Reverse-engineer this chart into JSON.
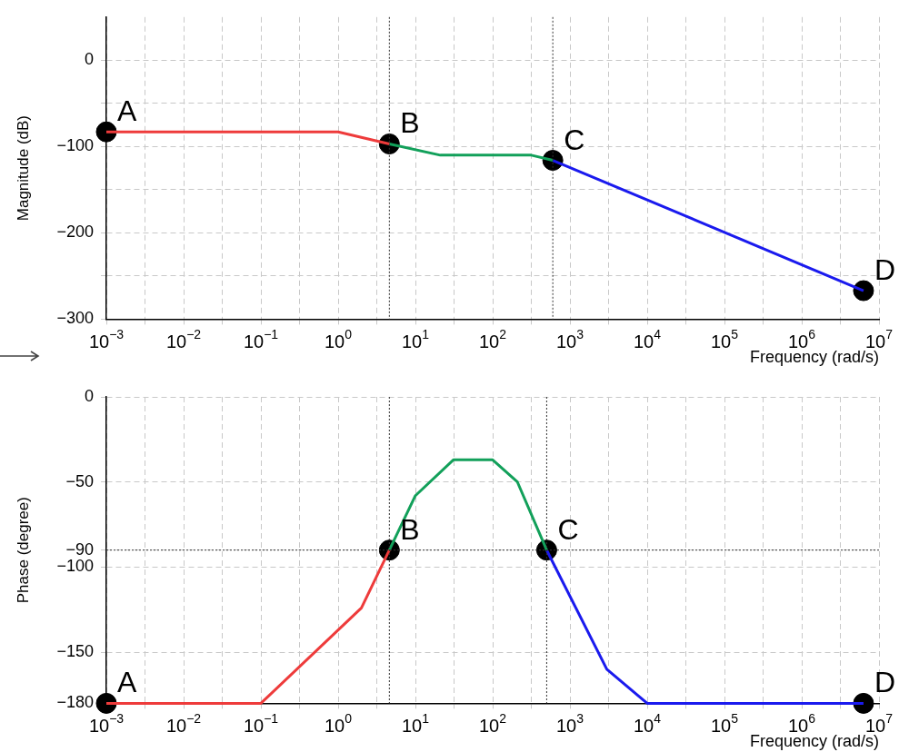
{
  "chart_data": [
    {
      "type": "line",
      "ylabel": "Magnitude (dB)",
      "xlabel": "Frequency (rad/s)",
      "log": "x",
      "grid": true,
      "legend": false,
      "line_style": "solid",
      "marker": "none",
      "xlim": [
        0.001,
        10000000
      ],
      "ylim": [
        -300,
        50
      ],
      "xticks": [
        {
          "value": 0.001,
          "label": "10$^{−3}$"
        },
        {
          "value": 0.0032,
          "label": null
        },
        {
          "value": 0.01,
          "label": "10$^{−2}$"
        },
        {
          "value": 0.032,
          "label": null
        },
        {
          "value": 0.1,
          "label": "10$^{−1}$"
        },
        {
          "value": 0.32,
          "label": null
        },
        {
          "value": 1,
          "label": "10$^{0}$"
        },
        {
          "value": 3.2,
          "label": null
        },
        {
          "value": 10,
          "label": "10$^{1}$"
        },
        {
          "value": 32,
          "label": null
        },
        {
          "value": 100,
          "label": "10$^{2}$"
        },
        {
          "value": 320,
          "label": null
        },
        {
          "value": 1000,
          "label": "10$^{3}$"
        },
        {
          "value": 3200,
          "label": null
        },
        {
          "value": 10000,
          "label": "10$^{4}$"
        },
        {
          "value": 32000,
          "label": null
        },
        {
          "value": 100000,
          "label": "10$^{5}$"
        },
        {
          "value": 320000,
          "label": null
        },
        {
          "value": 1000000,
          "label": "10$^{6}$"
        },
        {
          "value": 3200000,
          "label": null
        },
        {
          "value": 10000000,
          "label": "10$^{7}$"
        }
      ],
      "yticks": [
        {
          "value": -300,
          "label": "−300"
        },
        {
          "value": -250,
          "label": null
        },
        {
          "value": -200,
          "label": "−200"
        },
        {
          "value": -150,
          "label": null
        },
        {
          "value": -100,
          "label": "−100"
        },
        {
          "value": -50,
          "label": null
        },
        0
      ],
      "series": [
        {
          "type": "line",
          "color": "#ee3b3b",
          "x": [
            0.001,
            1,
            4.6
          ],
          "values": [
            -83,
            -83,
            -97
          ]
        },
        {
          "type": "line",
          "color": "#12a05a",
          "x": [
            4.6,
            21,
            316,
            600
          ],
          "values": [
            -97,
            -110,
            -110,
            -116
          ]
        },
        {
          "type": "line",
          "color": "#1a1aee",
          "x": [
            600,
            6300000
          ],
          "values": [
            -116,
            -267
          ]
        },
        {
          "type": "scatter",
          "marker": "circle",
          "color": "#000000",
          "x": [
            0.001,
            4.6,
            600,
            6300000
          ],
          "values": [
            -83,
            -97,
            -116,
            -267
          ]
        }
      ],
      "ref_lines": [
        {
          "axis": "x",
          "value": 4.6,
          "color": "#333333",
          "line_style": "dotted"
        },
        {
          "axis": "x",
          "value": 600,
          "color": "#333333",
          "line_style": "dotted"
        }
      ],
      "annotations": [
        {
          "text": "A",
          "x": 0.001,
          "y": -83
        },
        {
          "text": "B",
          "x": 4.6,
          "y": -97
        },
        {
          "text": "C",
          "x": 600,
          "y": -116
        },
        {
          "text": "D",
          "x": 6300000,
          "y": -267
        }
      ]
    },
    {
      "type": "line",
      "ylabel": "Phase (degree)",
      "xlabel": "Frequency (rad/s)",
      "log": "x",
      "grid": true,
      "legend": false,
      "line_style": "solid",
      "marker": "none",
      "xlim": [
        0.001,
        10000000
      ],
      "ylim": [
        -180,
        0
      ],
      "xticks": [
        {
          "value": 0.001,
          "label": "10$^{−3}$"
        },
        {
          "value": 0.0032,
          "label": null
        },
        {
          "value": 0.01,
          "label": "10$^{−2}$"
        },
        {
          "value": 0.032,
          "label": null
        },
        {
          "value": 0.1,
          "label": "10$^{−1}$"
        },
        {
          "value": 0.32,
          "label": null
        },
        {
          "value": 1,
          "label": "10$^{0}$"
        },
        {
          "value": 3.2,
          "label": null
        },
        {
          "value": 10,
          "label": "10$^{1}$"
        },
        {
          "value": 32,
          "label": null
        },
        {
          "value": 100,
          "label": "10$^{2}$"
        },
        {
          "value": 320,
          "label": null
        },
        {
          "value": 1000,
          "label": "10$^{3}$"
        },
        {
          "value": 3200,
          "label": null
        },
        {
          "value": 10000,
          "label": "10$^{4}$"
        },
        {
          "value": 32000,
          "label": null
        },
        {
          "value": 100000,
          "label": "10$^{5}$"
        },
        {
          "value": 320000,
          "label": null
        },
        {
          "value": 1000000,
          "label": "10$^{6}$"
        },
        {
          "value": 3200000,
          "label": null
        },
        {
          "value": 10000000,
          "label": "10$^{7}$"
        }
      ],
      "yticks": [
        {
          "value": -180,
          "label": "−180"
        },
        {
          "value": -150,
          "label": "−150"
        },
        {
          "value": -100,
          "label": "−100"
        },
        {
          "value": -90,
          "label": "−90"
        },
        {
          "value": -50,
          "label": "−50"
        },
        0
      ],
      "series": [
        {
          "type": "line",
          "color": "#ee3b3b",
          "x": [
            0.001,
            0.1,
            2,
            4.6
          ],
          "values": [
            -180,
            -180,
            -124,
            -90
          ]
        },
        {
          "type": "line",
          "color": "#12a05a",
          "x": [
            4.6,
            10,
            31,
            100,
            209,
            500
          ],
          "values": [
            -90,
            -58,
            -37,
            -37,
            -50,
            -90
          ]
        },
        {
          "type": "line",
          "color": "#1a1aee",
          "x": [
            500,
            3000,
            10000,
            6300000
          ],
          "values": [
            -90,
            -160,
            -180,
            -180
          ]
        },
        {
          "type": "scatter",
          "marker": "circle",
          "color": "#000000",
          "x": [
            0.001,
            4.6,
            500,
            6300000
          ],
          "values": [
            -180,
            -90,
            -90,
            -180
          ]
        }
      ],
      "ref_lines": [
        {
          "axis": "x",
          "value": 4.6,
          "color": "#333333",
          "line_style": "dotted"
        },
        {
          "axis": "x",
          "value": 500,
          "color": "#333333",
          "line_style": "dotted"
        },
        {
          "axis": "y",
          "value": -90,
          "color": "#333333",
          "line_style": "dotted"
        }
      ],
      "annotations": [
        {
          "text": "A",
          "x": 0.001,
          "y": -180
        },
        {
          "text": "B",
          "x": 4.6,
          "y": -90
        },
        {
          "text": "C",
          "x": 500,
          "y": -90
        },
        {
          "text": "D",
          "x": 6300000,
          "y": -180
        }
      ]
    }
  ]
}
